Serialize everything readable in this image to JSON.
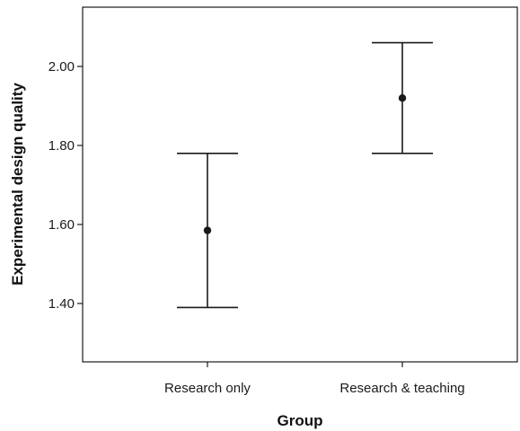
{
  "chart_data": {
    "type": "errorbar",
    "title": "",
    "xlabel": "Group",
    "ylabel": "Experimental design quality",
    "categories": [
      "Research only",
      "Research & teaching"
    ],
    "means": [
      1.585,
      1.92
    ],
    "lower": [
      1.39,
      1.78
    ],
    "upper": [
      1.78,
      2.06
    ],
    "ylim": [
      1.25,
      2.15
    ],
    "yticks": [
      1.4,
      1.6,
      1.8,
      2.0
    ],
    "ytick_labels": [
      "1.40",
      "1.60",
      "1.80",
      "2.00"
    ],
    "grid": false,
    "legend": "none",
    "colors": {
      "mark": "#1a1a1a",
      "axis": "#1a1a1a",
      "text": "#1a1a1a"
    }
  }
}
